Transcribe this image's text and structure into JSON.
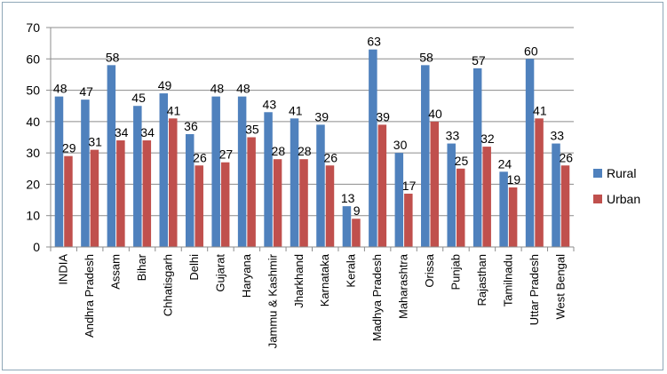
{
  "chart_data": {
    "type": "bar",
    "title": "",
    "xlabel": "",
    "ylabel": "",
    "ylim": [
      0,
      70
    ],
    "yticks": [
      0,
      10,
      20,
      30,
      40,
      50,
      60,
      70
    ],
    "grid": true,
    "legend_position": "right",
    "categories": [
      "INDIA",
      "Andhra Pradesh",
      "Assam",
      "Bihar",
      "Chhatisgarh",
      "Delhi",
      "Gujarat",
      "Haryana",
      "Jammu & Kashmir",
      "Jharkhand",
      "Karnataka",
      "Kerala",
      "Madhya Pradesh",
      "Maharashtra",
      "Orissa",
      "Punjab",
      "Rajasthan",
      "Tamilnadu",
      "Uttar Pradesh",
      "West Bengal"
    ],
    "series": [
      {
        "name": "Rural",
        "color": "#4f81bd",
        "values": [
          48,
          47,
          58,
          45,
          49,
          36,
          48,
          48,
          43,
          41,
          39,
          13,
          63,
          30,
          58,
          33,
          57,
          24,
          60,
          33
        ]
      },
      {
        "name": "Urban",
        "color": "#c0504d",
        "values": [
          29,
          31,
          34,
          34,
          41,
          26,
          27,
          35,
          28,
          28,
          26,
          9,
          39,
          17,
          40,
          25,
          32,
          19,
          41,
          26
        ]
      }
    ]
  }
}
